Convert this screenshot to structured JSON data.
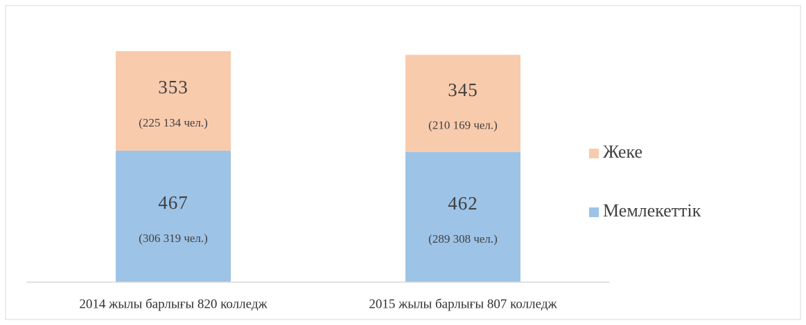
{
  "chart_data": {
    "type": "stacked_bar",
    "categories": [
      "2014 жылы барлығы 820 колледж",
      "2015 жылы барлығы 807 колледж"
    ],
    "series": [
      {
        "name": "Мемлекеттік",
        "color": "#9dc3e6",
        "values": [
          467,
          462
        ],
        "sublabels": [
          "(306 319 чел.)",
          "(289 308 чел.)"
        ]
      },
      {
        "name": "Жеке",
        "color": "#f8cbad",
        "values": [
          353,
          345
        ],
        "sublabels": [
          "(225 134 чел.)",
          "(210 169 чел.)"
        ]
      }
    ],
    "legend": "right"
  }
}
